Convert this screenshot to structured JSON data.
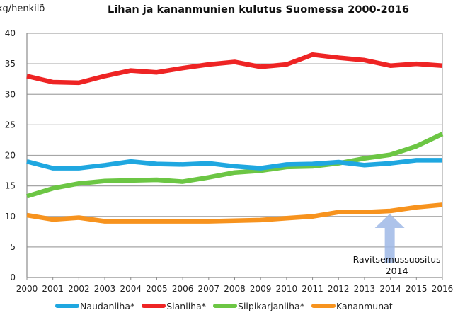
{
  "chart_data": {
    "type": "line",
    "title": "Lihan ja kananmunien kulutus Suomessa 2000-2016",
    "xlabel": "",
    "ylabel": "kg/henkilö",
    "ylim": [
      0,
      40
    ],
    "yticks": [
      0,
      5,
      10,
      15,
      20,
      25,
      30,
      35,
      40
    ],
    "grid": true,
    "legend_position": "bottom",
    "x": [
      "2000",
      "2001",
      "2002",
      "2003",
      "2004",
      "2005",
      "2006",
      "2007",
      "2008",
      "2009",
      "2010",
      "2011",
      "2012",
      "2013",
      "2014",
      "2015",
      "2016"
    ],
    "series": [
      {
        "name": "Naudanliha*",
        "color": "#1fa7e0",
        "values": [
          19.0,
          17.9,
          17.9,
          18.4,
          19.0,
          18.6,
          18.5,
          18.7,
          18.2,
          17.9,
          18.5,
          18.6,
          18.9,
          18.4,
          18.7,
          19.2,
          19.2
        ]
      },
      {
        "name": "Sianliha*",
        "color": "#ee2424",
        "values": [
          33.0,
          32.0,
          31.9,
          33.0,
          33.9,
          33.6,
          34.3,
          34.9,
          35.3,
          34.5,
          34.9,
          36.5,
          36.0,
          35.6,
          34.7,
          35.0,
          34.7
        ]
      },
      {
        "name": "Siipikarjanliha*",
        "color": "#6cc644",
        "values": [
          13.3,
          14.6,
          15.4,
          15.8,
          15.9,
          16.0,
          15.7,
          16.4,
          17.2,
          17.5,
          18.1,
          18.2,
          18.7,
          19.5,
          20.1,
          21.5,
          23.5
        ]
      },
      {
        "name": "Kananmunat",
        "color": "#f7931e",
        "values": [
          10.2,
          9.5,
          9.8,
          9.2,
          9.2,
          9.2,
          9.2,
          9.2,
          9.3,
          9.4,
          9.7,
          10.0,
          10.7,
          10.7,
          10.9,
          11.5,
          11.9
        ]
      }
    ],
    "annotations": [
      {
        "text_line1": "Ravitsemussuositus",
        "text_line2": "2014",
        "x": "2014",
        "arrow_color": "#9fb8e6",
        "arrow_points_to_value": 10.9
      }
    ]
  }
}
